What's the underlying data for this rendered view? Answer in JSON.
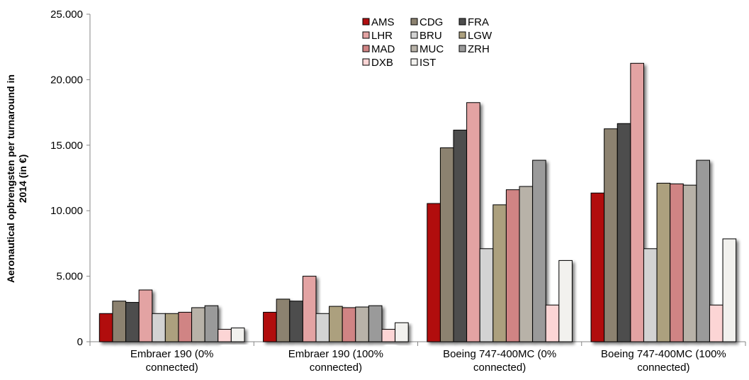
{
  "chart_data": {
    "type": "bar",
    "title": "",
    "xlabel": "",
    "ylabel": "Aeronautical opbrengsten per turnaround in 2014 (in €)",
    "ylabel_lines": [
      "Aeronautical opbrengsten per turnaround in",
      "2014 (in €)"
    ],
    "ylim": [
      0,
      25000
    ],
    "yticks": [
      0,
      5000,
      10000,
      15000,
      20000,
      25000
    ],
    "ytick_labels": [
      "0",
      "5.000",
      "10.000",
      "15.000",
      "20.000",
      "25.000"
    ],
    "grid": false,
    "legend_position": "top-center",
    "categories": [
      "Embraer 190 (0% connected)",
      "Embraer 190 (100% connected)",
      "Boeing 747-400MC (0% connected)",
      "Boeing 747-400MC (100% connected)"
    ],
    "category_lines": [
      [
        "Embraer 190 (0%",
        "connected)"
      ],
      [
        "Embraer 190 (100%",
        "connected)"
      ],
      [
        "Boeing 747-400MC (0%",
        "connected)"
      ],
      [
        "Boeing 747-400MC (100%",
        "connected)"
      ]
    ],
    "series": [
      {
        "name": "AMS",
        "color": "#b10f11",
        "values": [
          2150,
          2250,
          10550,
          11350
        ]
      },
      {
        "name": "CDG",
        "color": "#8c8270",
        "values": [
          3100,
          3250,
          14800,
          16250
        ]
      },
      {
        "name": "FRA",
        "color": "#4d4d4d",
        "values": [
          3000,
          3100,
          16150,
          16650
        ]
      },
      {
        "name": "LHR",
        "color": "#e3a3a3",
        "values": [
          3950,
          5000,
          18250,
          21250
        ]
      },
      {
        "name": "BRU",
        "color": "#d3d3d3",
        "values": [
          2150,
          2150,
          7100,
          7100
        ]
      },
      {
        "name": "LGW",
        "color": "#aca07e",
        "values": [
          2150,
          2700,
          10450,
          12100
        ]
      },
      {
        "name": "MAD",
        "color": "#d08484",
        "values": [
          2250,
          2600,
          11600,
          12050
        ]
      },
      {
        "name": "MUC",
        "color": "#b8b2a8",
        "values": [
          2600,
          2650,
          11850,
          11950
        ]
      },
      {
        "name": "ZRH",
        "color": "#9a9a9a",
        "values": [
          2750,
          2750,
          13850,
          13850
        ]
      },
      {
        "name": "DXB",
        "color": "#fcd5d5",
        "values": [
          950,
          950,
          2800,
          2800
        ]
      },
      {
        "name": "IST",
        "color": "#f2f1ee",
        "values": [
          1050,
          1450,
          6200,
          7850
        ]
      }
    ]
  }
}
